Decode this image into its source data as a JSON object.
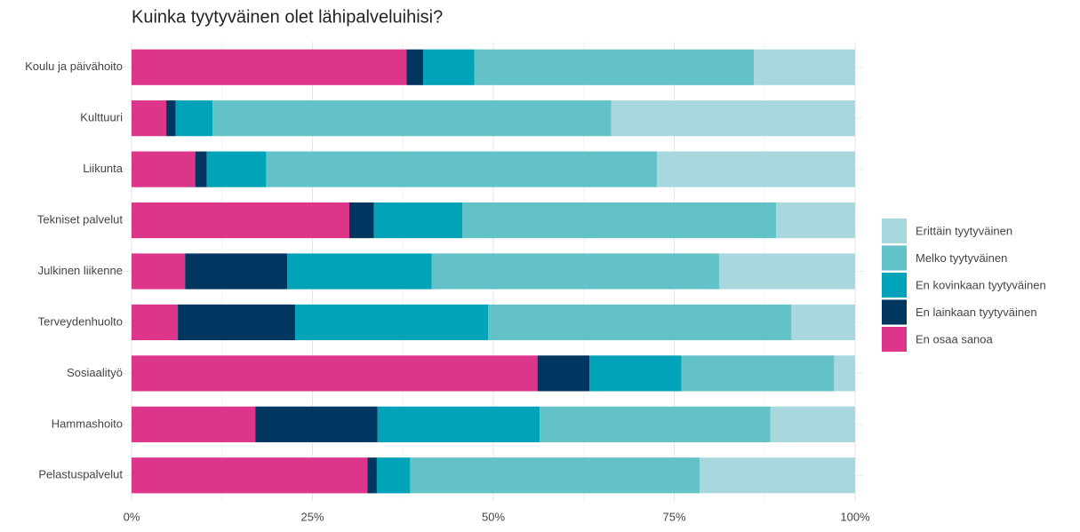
{
  "chart_data": {
    "type": "stacked_barh",
    "title": "Kuinka tyytyväinen olet lähipalveluihisi?",
    "categories": [
      "Koulu ja päivähoito",
      "Kulttuuri",
      "Liikunta",
      "Tekniset palvelut",
      "Julkinen liikenne",
      "Terveydenhuolto",
      "Sosiaalityö",
      "Hammashoito",
      "Pelastuspalvelut"
    ],
    "series": [
      {
        "name": "Erittäin tyytyväinen",
        "color": "#a8d8de",
        "values": [
          14.0,
          33.7,
          27.4,
          10.9,
          18.8,
          8.8,
          2.9,
          11.7,
          21.5
        ]
      },
      {
        "name": "Melko tyytyväinen",
        "color": "#62c2c8",
        "values": [
          38.6,
          55.1,
          54.0,
          43.4,
          39.7,
          41.9,
          21.1,
          31.9,
          40.0
        ]
      },
      {
        "name": "En kovinkaan tyytyväinen",
        "color": "#00a3b7",
        "values": [
          7.1,
          5.1,
          8.2,
          12.2,
          20.0,
          26.7,
          12.7,
          22.4,
          4.6
        ]
      },
      {
        "name": "En lainkaan tyytyväinen",
        "color": "#003660",
        "values": [
          2.3,
          1.3,
          1.6,
          3.4,
          14.1,
          16.2,
          7.2,
          16.9,
          1.3
        ]
      },
      {
        "name": "En osaa sanoa",
        "color": "#dc358a",
        "values": [
          38.0,
          4.8,
          8.8,
          30.1,
          7.4,
          6.4,
          56.1,
          17.1,
          32.6
        ]
      }
    ],
    "xlim": [
      0,
      100
    ],
    "xticks": [
      {
        "value": 0,
        "label": "0%"
      },
      {
        "value": 25,
        "label": "25%"
      },
      {
        "value": 50,
        "label": "50%"
      },
      {
        "value": 75,
        "label": "75%"
      },
      {
        "value": 100,
        "label": "100%"
      }
    ],
    "xminorticks": [
      12.5,
      37.5,
      62.5,
      87.5
    ],
    "grid": true,
    "legend": "right"
  }
}
